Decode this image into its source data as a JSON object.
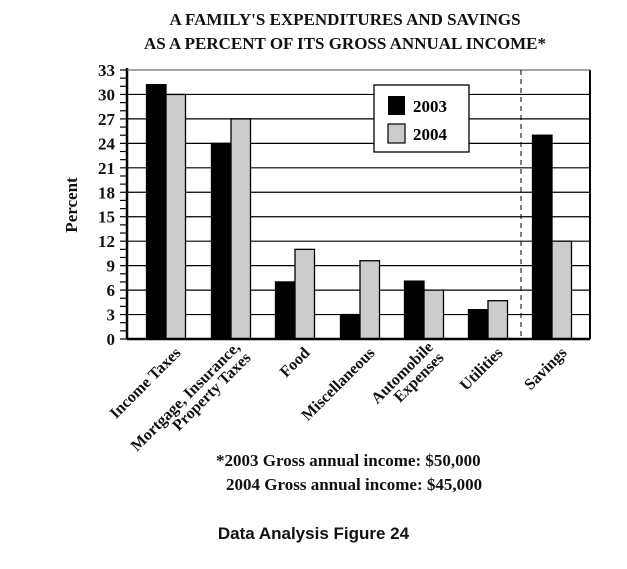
{
  "chart_data": {
    "type": "bar",
    "title": [
      "A FAMILY'S EXPENDITURES AND SAVINGS",
      "AS A PERCENT OF ITS GROSS ANNUAL INCOME*"
    ],
    "ylabel": "Percent",
    "xlabel": "",
    "ylim": [
      0,
      33
    ],
    "yticks": [
      "0",
      "3",
      "6",
      "9",
      "12",
      "15",
      "18",
      "21",
      "24",
      "27",
      "30",
      "33"
    ],
    "grid": true,
    "legend_position": "top-right",
    "categories": [
      [
        "Income Taxes"
      ],
      [
        "Mortgage, Insurance,",
        "Property Taxes"
      ],
      [
        "Food"
      ],
      [
        "Miscellaneous"
      ],
      [
        "Automobile",
        "Expenses"
      ],
      [
        "Utilities"
      ],
      [
        "Savings"
      ]
    ],
    "series": [
      {
        "name": "2003",
        "color": "#000000",
        "values": [
          31.2,
          24,
          7,
          3,
          7.1,
          3.6,
          25
        ]
      },
      {
        "name": "2004",
        "color": "#cccccc",
        "values": [
          30,
          27,
          11,
          9.6,
          6,
          4.7,
          12
        ]
      }
    ],
    "footnotes": [
      "*2003 Gross annual income:  $50,000",
      "2004 Gross annual income:  $45,000"
    ]
  },
  "caption": "Data Analysis Figure 24"
}
